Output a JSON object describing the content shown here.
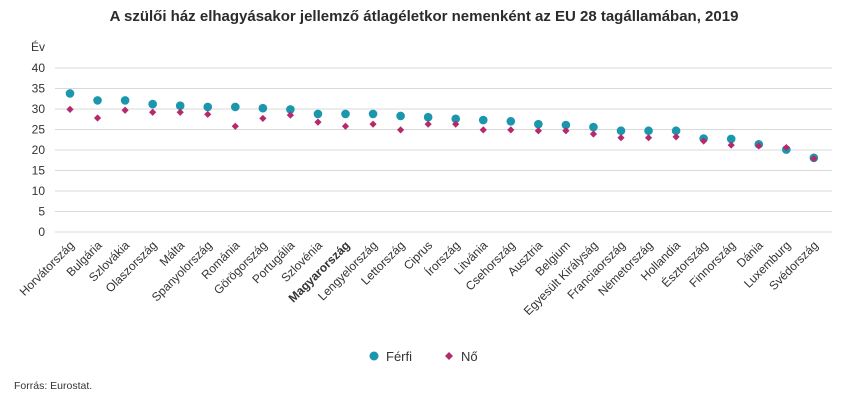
{
  "chart_data": {
    "type": "scatter",
    "title": "A szülői ház elhagyásakor jellemző átlagéletkor nemenként az EU 28 tagállamában, 2019",
    "ylabel": "Év",
    "ylim": [
      0,
      40
    ],
    "yticks": [
      "0",
      "5",
      "10",
      "15",
      "20",
      "25",
      "30",
      "35",
      "40"
    ],
    "grid": true,
    "legend_position": "bottom",
    "highlight_category": "Magyarország",
    "categories": [
      "Horvátország",
      "Bulgária",
      "Szlovákia",
      "Olaszország",
      "Málta",
      "Spanyolország",
      "Románia",
      "Görögország",
      "Portugália",
      "Szlovénia",
      "Magyarország",
      "Lengyelország",
      "Lettország",
      "Ciprus",
      "Írország",
      "Litvánia",
      "Csehország",
      "Ausztria",
      "Belgium",
      "Egyesült Királyság",
      "Franciaország",
      "Németország",
      "Hollandia",
      "Észtország",
      "Finnország",
      "Dánia",
      "Luxemburg",
      "Svédország"
    ],
    "series": [
      {
        "name": "Férfi",
        "color": "#1a96ad",
        "marker": "circle",
        "values": [
          33.8,
          32.1,
          32.1,
          31.2,
          30.8,
          30.5,
          30.5,
          30.2,
          29.9,
          28.8,
          28.8,
          28.8,
          28.3,
          28.0,
          27.6,
          27.3,
          27.0,
          26.3,
          26.1,
          25.6,
          24.7,
          24.7,
          24.7,
          22.8,
          22.7,
          21.4,
          20.1,
          18.1
        ]
      },
      {
        "name": "Nő",
        "color": "#b62a6b",
        "marker": "diamond",
        "values": [
          29.9,
          27.8,
          29.7,
          29.2,
          29.2,
          28.7,
          25.8,
          27.7,
          28.5,
          26.8,
          25.8,
          26.3,
          24.9,
          26.3,
          26.3,
          24.9,
          24.9,
          24.7,
          24.7,
          23.9,
          23.0,
          23.0,
          23.2,
          22.2,
          21.2,
          21.0,
          20.6,
          17.9
        ]
      }
    ]
  },
  "source": "Forrás: Eurostat."
}
